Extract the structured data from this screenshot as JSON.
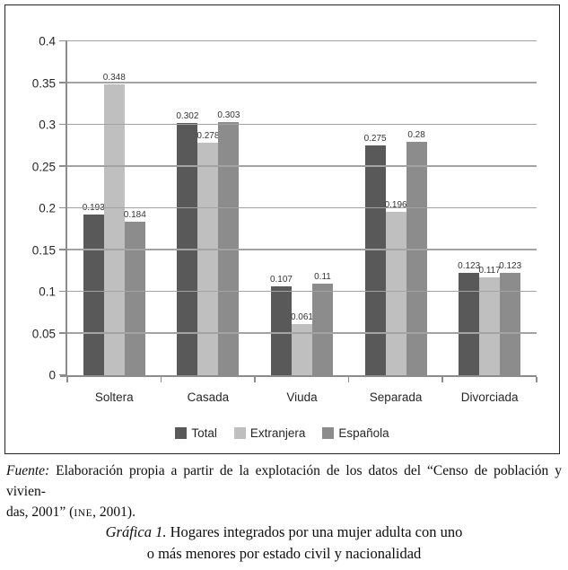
{
  "chart_data": {
    "type": "bar",
    "title": "",
    "xlabel": "",
    "ylabel": "",
    "categories": [
      "Soltera",
      "Casada",
      "Viuda",
      "Separada",
      "Divorciada"
    ],
    "series": [
      {
        "name": "Total",
        "color": "#595959",
        "values": [
          0.193,
          0.302,
          0.107,
          0.275,
          0.123
        ]
      },
      {
        "name": "Extranjera",
        "color": "#bfbfbf",
        "values": [
          0.348,
          0.278,
          0.061,
          0.196,
          0.117
        ]
      },
      {
        "name": "Española",
        "color": "#8c8c8c",
        "values": [
          0.184,
          0.303,
          0.11,
          0.28,
          0.123
        ]
      }
    ],
    "ylim": [
      0,
      0.4
    ],
    "y_ticks": [
      0,
      0.05,
      0.1,
      0.15,
      0.2,
      0.25,
      0.3,
      0.35,
      0.4
    ],
    "grid": true,
    "data_labels": true,
    "legend_position": "bottom",
    "colors": {
      "grid": "#a3a3a3",
      "axis": "#8c8c8c",
      "frame_border": "#262626"
    }
  },
  "footer": {
    "fuente_label": "Fuente:",
    "line1_rest": " Elaboración propia a partir de la explotación de los datos del “Censo de población y vivien-",
    "line2_pre": "das, 2001” (",
    "ine": "INE",
    "line2_post": ", 2001)."
  },
  "caption": {
    "label": "Gráfica 1.",
    "line1_rest": " Hogares integrados por una mujer adulta con uno",
    "line2": "o más menores por estado civil y nacionalidad"
  }
}
